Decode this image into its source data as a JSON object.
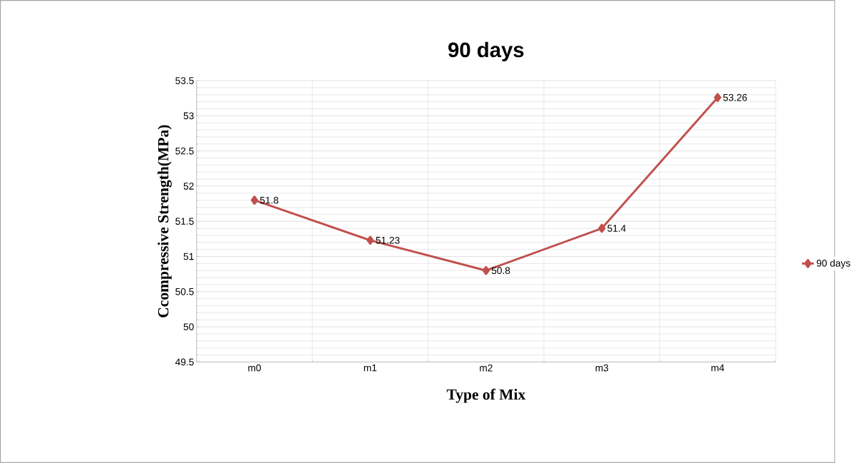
{
  "chart_data": {
    "type": "line",
    "title": "90 days",
    "xlabel": "Type of Mix",
    "ylabel": "Ccompressive Strength(MPa)",
    "categories": [
      "m0",
      "m1",
      "m2",
      "m3",
      "m4"
    ],
    "series": [
      {
        "name": "90 days",
        "color": "#c0504d",
        "values": [
          51.8,
          51.23,
          50.8,
          51.4,
          53.26
        ]
      }
    ],
    "ylim": [
      49.5,
      53.5
    ],
    "yticks": [
      49.5,
      50,
      50.5,
      51,
      51.5,
      52,
      52.5,
      53,
      53.5
    ],
    "grid": true,
    "legend": "right",
    "marker": "diamond",
    "line_style": "solid",
    "data_labels": true
  }
}
